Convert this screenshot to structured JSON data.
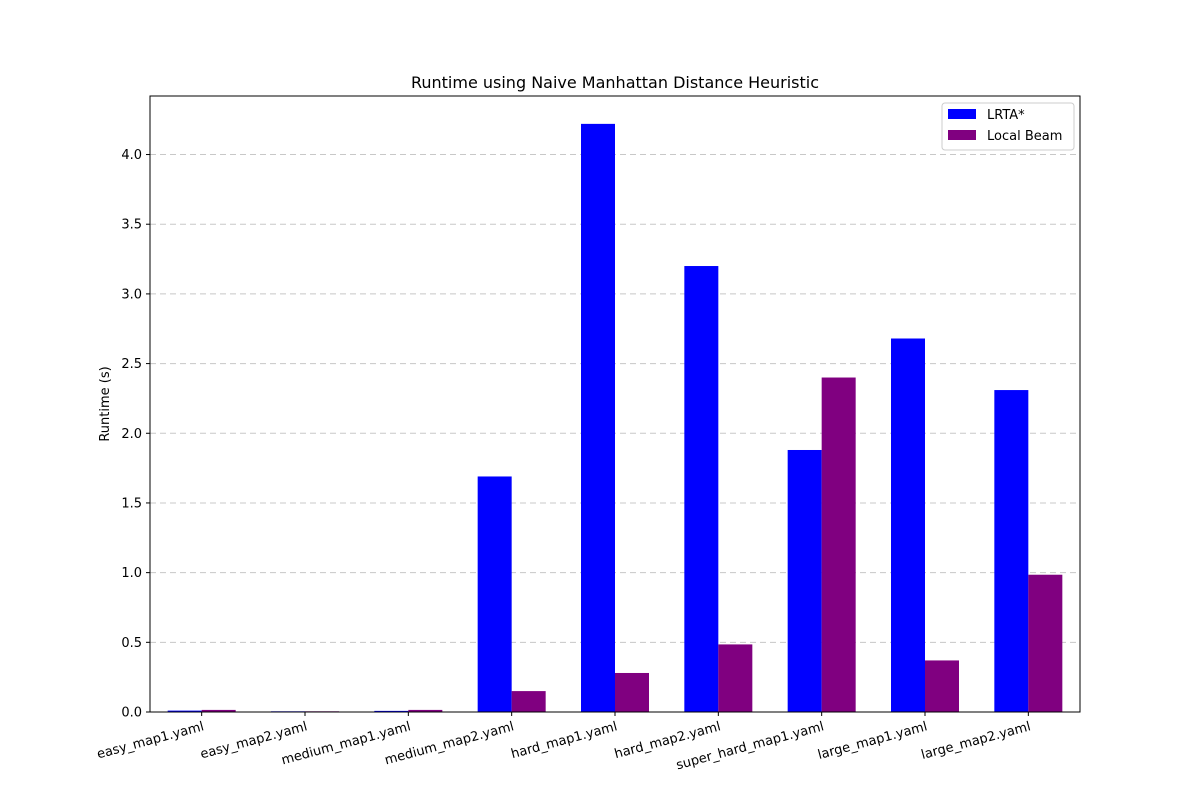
{
  "chart_data": {
    "type": "bar",
    "title": "Runtime using Naive Manhattan Distance Heuristic",
    "xlabel": "",
    "ylabel": "Runtime (s)",
    "categories": [
      "easy_map1.yaml",
      "easy_map2.yaml",
      "medium_map1.yaml",
      "medium_map2.yaml",
      "hard_map1.yaml",
      "hard_map2.yaml",
      "super_hard_map1.yaml",
      "large_map1.yaml",
      "large_map2.yaml"
    ],
    "series": [
      {
        "name": "LRTA*",
        "color": "#0000ff",
        "values": [
          0.01,
          0.005,
          0.008,
          1.69,
          4.22,
          3.2,
          1.88,
          2.68,
          2.31
        ]
      },
      {
        "name": "Local Beam",
        "color": "#800080",
        "values": [
          0.015,
          0.005,
          0.015,
          0.15,
          0.28,
          0.485,
          2.4,
          0.37,
          0.985
        ]
      }
    ],
    "ylim": [
      0,
      4.42
    ],
    "yticks": [
      "0.0",
      "0.5",
      "1.0",
      "1.5",
      "2.0",
      "2.5",
      "3.0",
      "3.5",
      "4.0"
    ],
    "grid": true,
    "grid_axis": "y",
    "legend_position": "top-right",
    "xtick_rotation": "rotated"
  }
}
